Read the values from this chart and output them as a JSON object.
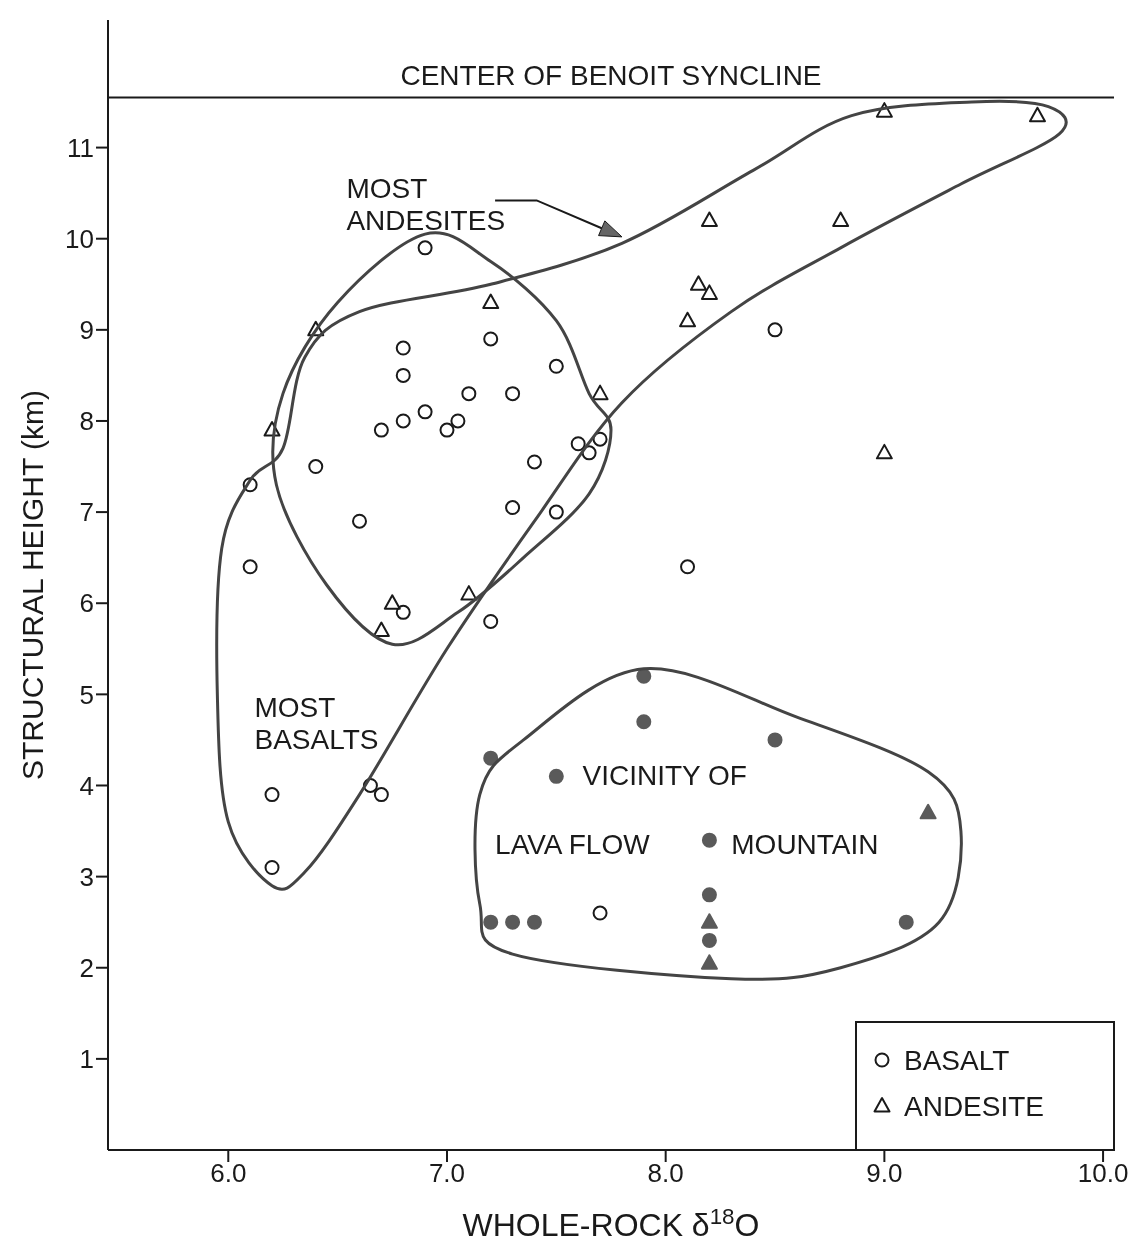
{
  "chart_data": {
    "type": "scatter",
    "xlabel": "WHOLE-ROCK δ$^{18}$O",
    "ylabel": "STRUCTURAL HEIGHT (km)",
    "xlim": [
      5.45,
      10.05
    ],
    "ylim": [
      0,
      12.4
    ],
    "xticks": [
      {
        "value": 6,
        "label": "6.0"
      },
      {
        "value": 7,
        "label": "7.0"
      },
      {
        "value": 8,
        "label": "8.0"
      },
      {
        "value": 9,
        "label": "9.0"
      },
      {
        "value": 10,
        "label": "10.0"
      }
    ],
    "yticks": [
      1,
      2,
      3,
      4,
      5,
      6,
      7,
      8,
      9,
      10,
      11
    ],
    "grid": false,
    "legend": "bottom right",
    "ref_lines": [
      {
        "axis": "y",
        "value": 11.55,
        "label": "CENTER OF BENOIT SYNCLINE",
        "color": "#1a1a1a"
      }
    ],
    "annotations": [
      "MOST\nANDESITES",
      "MOST\nBASALTS",
      "VICINITY OF",
      "LAVA FLOW",
      "MOUNTAIN"
    ],
    "series": [
      {
        "name": "BASALT",
        "marker": "circle",
        "color": "#1a1a1a",
        "x": [
          6.9,
          6.8,
          6.8,
          7.2,
          7.5,
          7.1,
          7.3,
          6.8,
          6.9,
          7.0,
          7.05,
          6.7,
          6.4,
          7.4,
          7.6,
          7.65,
          7.7,
          6.1,
          7.3,
          7.5,
          6.6,
          6.1,
          6.8,
          7.2,
          8.1,
          8.5,
          6.2,
          6.65,
          6.7,
          6.2,
          7.7
        ],
        "values": [
          9.9,
          8.8,
          8.5,
          8.9,
          8.6,
          8.3,
          8.3,
          8.0,
          8.1,
          7.9,
          8.0,
          7.9,
          7.5,
          7.55,
          7.75,
          7.65,
          7.8,
          7.3,
          7.05,
          7.0,
          6.9,
          6.4,
          5.9,
          5.8,
          6.4,
          9.0,
          3.9,
          4.0,
          3.9,
          3.1,
          2.6
        ]
      },
      {
        "name": "ANDESITE",
        "marker": "triangle",
        "color": "#1a1a1a",
        "x": [
          6.4,
          6.2,
          7.2,
          7.7,
          6.75,
          6.7,
          7.1,
          8.2,
          8.15,
          8.2,
          8.1,
          8.8,
          9.0,
          9.7,
          9.0
        ],
        "values": [
          9.0,
          7.9,
          9.3,
          8.3,
          6.0,
          5.7,
          6.1,
          10.2,
          9.5,
          9.4,
          9.1,
          10.2,
          11.4,
          11.35,
          7.65
        ]
      },
      {
        "marker": "circle",
        "color": "#5a5a5a",
        "x": [
          7.9,
          7.9,
          8.5,
          7.2,
          7.5,
          8.2,
          8.2,
          8.2,
          7.2,
          7.3,
          7.4,
          9.1
        ],
        "values": [
          5.2,
          4.7,
          4.5,
          4.3,
          4.1,
          3.4,
          2.8,
          2.3,
          2.5,
          2.5,
          2.5,
          2.5
        ]
      },
      {
        "marker": "triangle",
        "color": "#5a5a5a",
        "x": [
          9.2,
          8.2,
          8.2
        ],
        "values": [
          3.7,
          2.5,
          2.05
        ]
      }
    ]
  }
}
